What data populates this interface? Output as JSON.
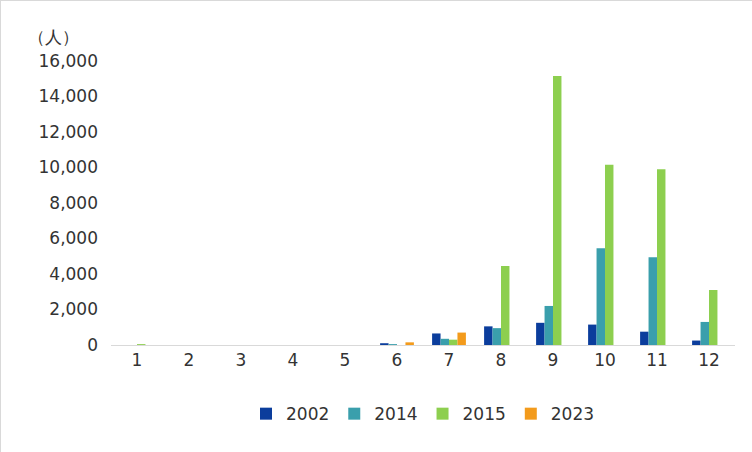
{
  "chart_data": {
    "type": "bar",
    "y_label": "（人）",
    "categories": [
      "1",
      "2",
      "3",
      "4",
      "5",
      "6",
      "7",
      "8",
      "9",
      "10",
      "11",
      "12"
    ],
    "series": [
      {
        "name": "2002",
        "color": "#0b3d9c",
        "values": [
          0,
          0,
          0,
          0,
          0,
          100,
          650,
          1050,
          1250,
          1150,
          750,
          250
        ]
      },
      {
        "name": "2014",
        "color": "#3a9fac",
        "values": [
          0,
          0,
          0,
          0,
          0,
          50,
          350,
          950,
          2200,
          5450,
          4950,
          1300
        ]
      },
      {
        "name": "2015",
        "color": "#8dcf4f",
        "values": [
          50,
          0,
          0,
          0,
          0,
          0,
          300,
          4450,
          15150,
          10150,
          9900,
          3100
        ]
      },
      {
        "name": "2023",
        "color": "#f39b1c",
        "values": [
          0,
          0,
          0,
          0,
          0,
          150,
          700,
          null,
          null,
          null,
          null,
          null
        ]
      }
    ],
    "ylim": [
      0,
      16000
    ],
    "yticks": [
      0,
      {
        "value": 2000,
        "label": "2,000"
      },
      {
        "value": 4000,
        "label": "4,000"
      },
      {
        "value": 6000,
        "label": "6,000"
      },
      {
        "value": 8000,
        "label": "8,000"
      },
      {
        "value": 10000,
        "label": "10,000"
      },
      {
        "value": 12000,
        "label": "12,000"
      },
      {
        "value": 14000,
        "label": "14,000"
      },
      {
        "value": 16000,
        "label": "16,000"
      }
    ],
    "grid": false,
    "legend": "bottom"
  }
}
